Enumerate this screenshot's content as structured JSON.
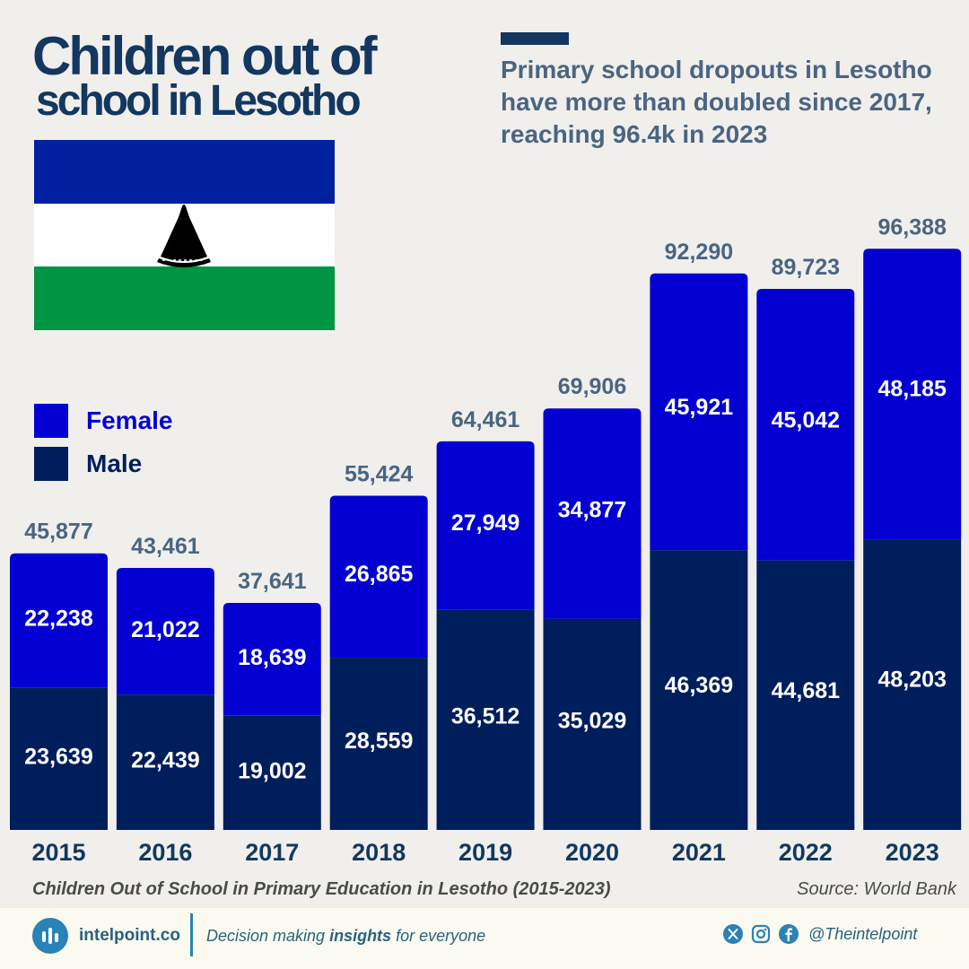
{
  "header": {
    "title_line1": "Children out of",
    "title_line2": "school in Lesotho",
    "subtitle": "Primary school dropouts in Lesotho have more than doubled since 2017, reaching 96.4k in 2023"
  },
  "colors": {
    "female": "#0400d2",
    "male": "#001e5c",
    "total_label": "#4a6581",
    "year_label": "#13375f",
    "flag_blue": "#00209f",
    "flag_green": "#009543"
  },
  "chart_data": {
    "type": "bar",
    "stacked": true,
    "categories": [
      "2015",
      "2016",
      "2017",
      "2018",
      "2019",
      "2020",
      "2021",
      "2022",
      "2023"
    ],
    "series": [
      {
        "name": "Male",
        "values": [
          23639,
          22439,
          19002,
          28559,
          36512,
          35029,
          46369,
          44681,
          48203
        ]
      },
      {
        "name": "Female",
        "values": [
          22238,
          21022,
          18639,
          26865,
          27949,
          34877,
          45921,
          45042,
          48185
        ]
      }
    ],
    "totals": [
      45877,
      43461,
      37641,
      55424,
      64461,
      69906,
      92290,
      89723,
      96388
    ],
    "legend": [
      "Female",
      "Male"
    ],
    "legend_position": "left",
    "grid": false
  },
  "caption": "Children Out of School in Primary Education in Lesotho (2015-2023)",
  "source": "Source: World Bank",
  "footer": {
    "brand": "intelpoint.co",
    "tagline_pre": "Decision making ",
    "tagline_bold": "insights",
    "tagline_post": " for everyone",
    "handle": "@Theintelpoint",
    "icons": [
      "chart-logo-icon",
      "x-icon",
      "instagram-icon",
      "facebook-icon"
    ]
  }
}
